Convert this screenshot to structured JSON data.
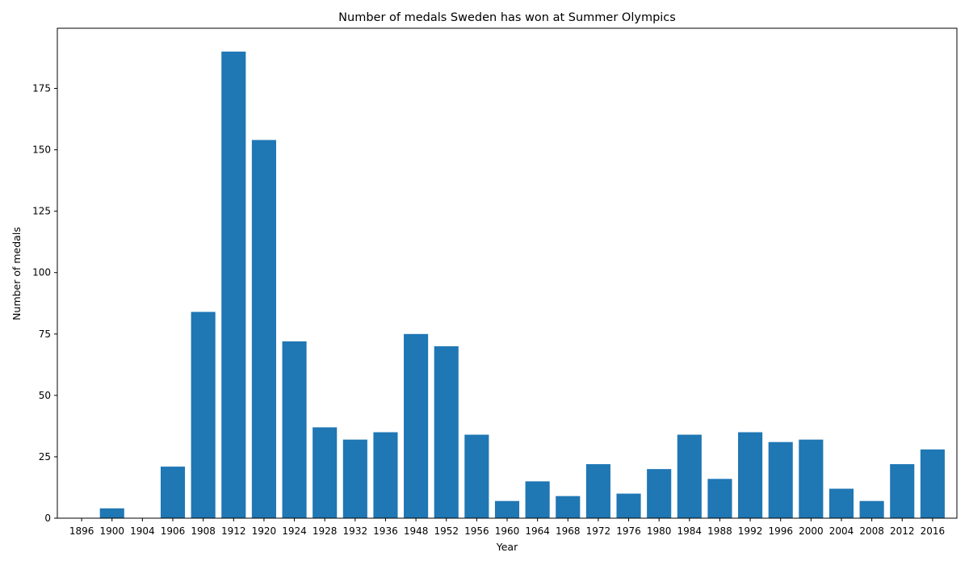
{
  "chart_data": {
    "type": "bar",
    "title": "Number of medals Sweden has won at Summer Olympics",
    "xlabel": "Year",
    "ylabel": "Number of medals",
    "categories": [
      "1896",
      "1900",
      "1904",
      "1906",
      "1908",
      "1912",
      "1920",
      "1924",
      "1928",
      "1932",
      "1936",
      "1948",
      "1952",
      "1956",
      "1960",
      "1964",
      "1968",
      "1972",
      "1976",
      "1980",
      "1984",
      "1988",
      "1992",
      "1996",
      "2000",
      "2004",
      "2008",
      "2012",
      "2016"
    ],
    "values": [
      0,
      4,
      0,
      21,
      84,
      190,
      154,
      72,
      37,
      32,
      35,
      75,
      70,
      34,
      7,
      15,
      9,
      22,
      10,
      20,
      34,
      16,
      35,
      31,
      32,
      12,
      7,
      22,
      28
    ],
    "ylim": [
      0,
      199.5
    ],
    "yticks": [
      0,
      25,
      50,
      75,
      100,
      125,
      150,
      175
    ],
    "color": "#1f77b4",
    "grid": false,
    "legend": "none"
  }
}
